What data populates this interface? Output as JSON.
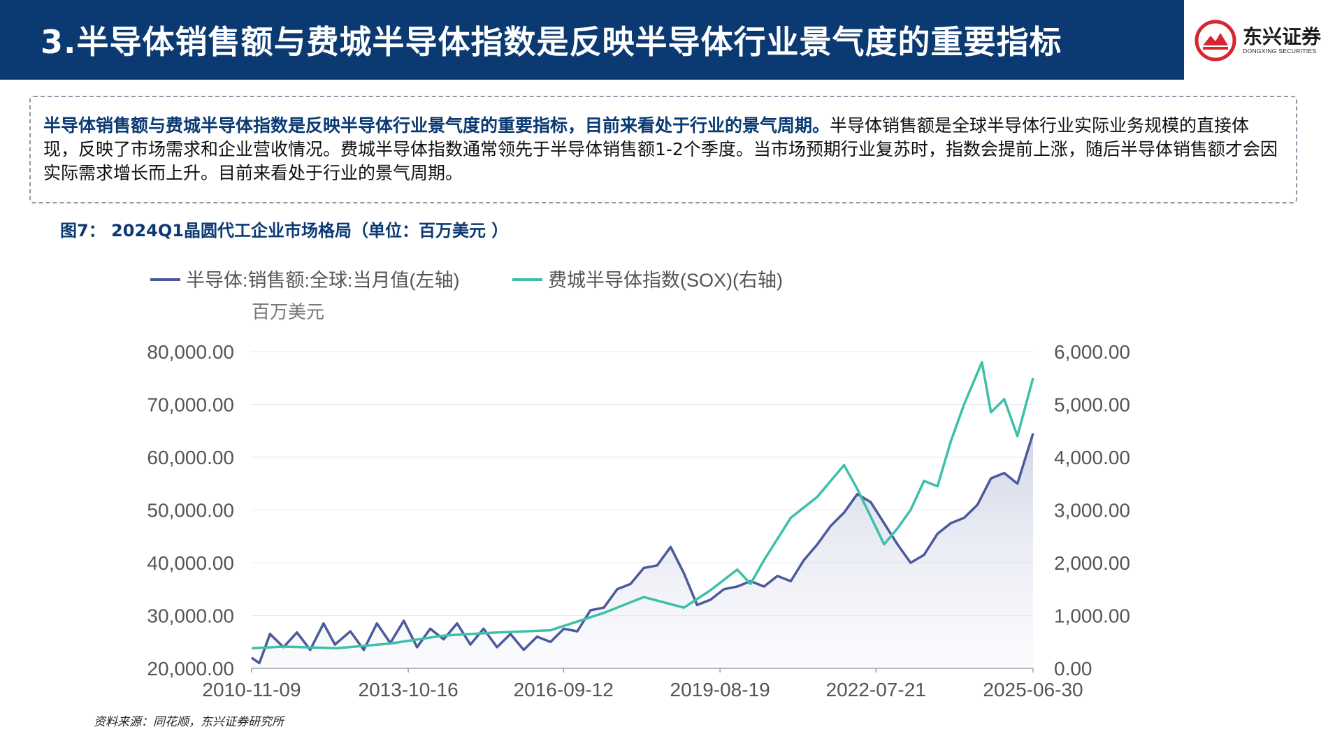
{
  "header": {
    "title": "3.半导体销售额与费城半导体指数是反映半导体行业景气度的重要指标",
    "logo_cn": "东兴证券",
    "logo_en": "DONGXING SECURITIES"
  },
  "summary": {
    "highlight": "半导体销售额与费城半导体指数是反映半导体行业景气度的重要指标，目前来看处于行业的景气周期。",
    "body": "半导体销售额是全球半导体行业实际业务规模的直接体现，反映了市场需求和企业营收情况。费城半导体指数通常领先于半导体销售额1-2个季度。当市场预期行业复苏时，指数会提前上涨，随后半导体销售额才会因实际需求增长而上升。目前来看处于行业的景气周期。"
  },
  "figure": {
    "title": "图7：  2024Q1晶圆代工企业市场格局（单位：百万美元 ）"
  },
  "source": "资料来源：同花顺，东兴证券研究所",
  "colors": {
    "brand": "#0b3a73",
    "series_sales": "#4b5a9c",
    "series_sox": "#3dbfa8",
    "logo_red": "#d7262f"
  },
  "chart_data": {
    "type": "line",
    "title": "",
    "unit_label": "百万美元",
    "x_ticks": [
      "2010-11-09",
      "2013-10-16",
      "2016-09-12",
      "2019-08-19",
      "2022-07-21",
      "2025-06-30"
    ],
    "x_range": [
      "2010-11-09",
      "2025-06-30"
    ],
    "y_left": {
      "ticks": [
        "20,000.00",
        "30,000.00",
        "40,000.00",
        "50,000.00",
        "60,000.00",
        "70,000.00",
        "80,000.00"
      ],
      "range": [
        20000,
        80000
      ]
    },
    "y_right": {
      "ticks": [
        "0.00",
        "1,000.00",
        "2,000.00",
        "3,000.00",
        "4,000.00",
        "5,000.00",
        "6,000.00"
      ],
      "range": [
        0,
        6000
      ]
    },
    "legend_position": "top-left",
    "series": [
      {
        "name": "半导体:销售额:全球:当月值(左轴)",
        "axis": "left",
        "area_fill": true,
        "points": [
          [
            "2010-11-09",
            22000
          ],
          [
            "2011-01-01",
            21000
          ],
          [
            "2011-03-15",
            26500
          ],
          [
            "2011-06-15",
            24000
          ],
          [
            "2011-09-15",
            26800
          ],
          [
            "2011-12-15",
            23500
          ],
          [
            "2012-03-15",
            28500
          ],
          [
            "2012-06-01",
            24500
          ],
          [
            "2012-09-15",
            27000
          ],
          [
            "2012-12-15",
            23500
          ],
          [
            "2013-03-15",
            28500
          ],
          [
            "2013-06-15",
            24800
          ],
          [
            "2013-09-15",
            29000
          ],
          [
            "2013-12-15",
            24000
          ],
          [
            "2014-03-15",
            27500
          ],
          [
            "2014-06-15",
            25500
          ],
          [
            "2014-09-15",
            28500
          ],
          [
            "2014-12-15",
            24500
          ],
          [
            "2015-03-15",
            27500
          ],
          [
            "2015-06-15",
            24000
          ],
          [
            "2015-09-15",
            26500
          ],
          [
            "2015-12-15",
            23500
          ],
          [
            "2016-03-15",
            26000
          ],
          [
            "2016-06-15",
            25000
          ],
          [
            "2016-09-15",
            27500
          ],
          [
            "2016-12-15",
            27000
          ],
          [
            "2017-03-15",
            31000
          ],
          [
            "2017-06-15",
            31500
          ],
          [
            "2017-09-15",
            35000
          ],
          [
            "2017-12-15",
            36000
          ],
          [
            "2018-03-15",
            39000
          ],
          [
            "2018-06-15",
            39500
          ],
          [
            "2018-09-15",
            43000
          ],
          [
            "2018-12-15",
            38000
          ],
          [
            "2019-03-15",
            32000
          ],
          [
            "2019-06-15",
            33000
          ],
          [
            "2019-09-15",
            35000
          ],
          [
            "2019-12-15",
            35500
          ],
          [
            "2020-03-15",
            36500
          ],
          [
            "2020-06-15",
            35500
          ],
          [
            "2020-09-15",
            37500
          ],
          [
            "2020-12-15",
            36500
          ],
          [
            "2021-03-15",
            40500
          ],
          [
            "2021-06-15",
            43500
          ],
          [
            "2021-09-15",
            47000
          ],
          [
            "2021-12-15",
            49500
          ],
          [
            "2022-03-15",
            53000
          ],
          [
            "2022-06-15",
            51500
          ],
          [
            "2022-09-15",
            47500
          ],
          [
            "2022-12-15",
            43500
          ],
          [
            "2023-03-15",
            40000
          ],
          [
            "2023-06-15",
            41500
          ],
          [
            "2023-09-15",
            45500
          ],
          [
            "2023-12-15",
            47500
          ],
          [
            "2024-03-15",
            48500
          ],
          [
            "2024-06-15",
            51000
          ],
          [
            "2024-09-15",
            56000
          ],
          [
            "2024-12-15",
            57000
          ],
          [
            "2025-03-15",
            55000
          ],
          [
            "2025-06-30",
            64500
          ]
        ]
      },
      {
        "name": "费城半导体指数(SOX)(右轴)",
        "axis": "right",
        "area_fill": false,
        "points": [
          [
            "2010-11-09",
            380
          ],
          [
            "2011-06-15",
            410
          ],
          [
            "2012-06-15",
            380
          ],
          [
            "2013-06-15",
            470
          ],
          [
            "2014-06-15",
            620
          ],
          [
            "2015-06-15",
            680
          ],
          [
            "2016-06-15",
            720
          ],
          [
            "2017-06-15",
            1050
          ],
          [
            "2018-03-15",
            1350
          ],
          [
            "2018-12-15",
            1150
          ],
          [
            "2019-06-15",
            1480
          ],
          [
            "2019-12-15",
            1870
          ],
          [
            "2020-03-15",
            1600
          ],
          [
            "2020-06-15",
            2050
          ],
          [
            "2020-12-15",
            2850
          ],
          [
            "2021-06-15",
            3250
          ],
          [
            "2021-12-15",
            3850
          ],
          [
            "2022-03-15",
            3400
          ],
          [
            "2022-09-15",
            2350
          ],
          [
            "2022-12-15",
            2650
          ],
          [
            "2023-03-15",
            3000
          ],
          [
            "2023-06-15",
            3550
          ],
          [
            "2023-09-15",
            3450
          ],
          [
            "2023-12-15",
            4300
          ],
          [
            "2024-03-15",
            5000
          ],
          [
            "2024-07-15",
            5800
          ],
          [
            "2024-09-15",
            4850
          ],
          [
            "2024-12-15",
            5100
          ],
          [
            "2025-03-15",
            4400
          ],
          [
            "2025-06-30",
            5500
          ]
        ]
      }
    ]
  }
}
